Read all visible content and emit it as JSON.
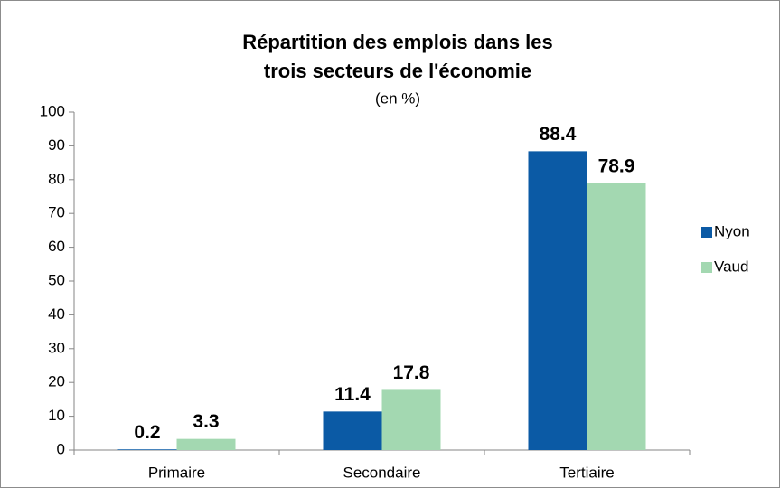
{
  "chart_data": {
    "type": "bar",
    "title": [
      "Répartition des emplois dans les",
      "trois secteurs de l'économie"
    ],
    "subtitle": "(en %)",
    "categories": [
      "Primaire",
      "Secondaire",
      "Tertiaire"
    ],
    "series": [
      {
        "name": "Nyon",
        "color": "#0b5aa5",
        "values": [
          0.2,
          11.4,
          88.4
        ]
      },
      {
        "name": "Vaud",
        "color": "#a3d8b1",
        "values": [
          3.3,
          17.8,
          78.9
        ]
      }
    ],
    "ylim": [
      0,
      100
    ],
    "yticks": [
      0,
      10,
      20,
      30,
      40,
      50,
      60,
      70,
      80,
      90,
      100
    ],
    "grid": false,
    "data_labels": true,
    "legend": "right"
  }
}
